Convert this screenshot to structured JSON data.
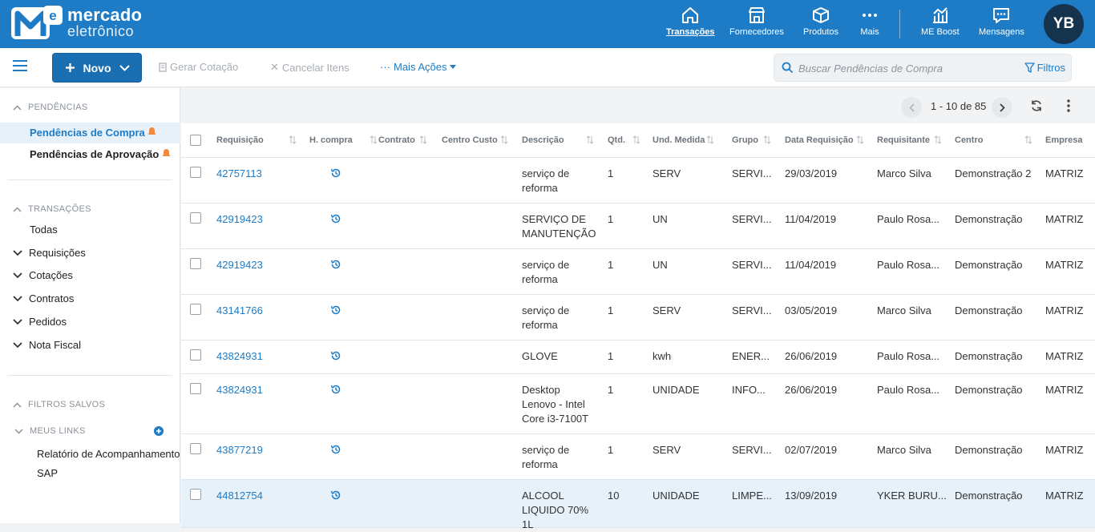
{
  "brand": {
    "line1": "mercado",
    "line2": "eletrônico",
    "mark": "me"
  },
  "nav": [
    {
      "label": "Transações",
      "icon": "home-icon",
      "active": true
    },
    {
      "label": "Fornecedores",
      "icon": "store-icon",
      "active": false
    },
    {
      "label": "Produtos",
      "icon": "box-icon",
      "active": false
    },
    {
      "label": "Mais",
      "icon": "more-dots-icon",
      "active": false
    },
    {
      "label": "ME Boost",
      "icon": "chart-icon",
      "active": false
    },
    {
      "label": "Mensagens",
      "icon": "message-icon",
      "active": false
    }
  ],
  "user": {
    "initials": "YB"
  },
  "toolbar": {
    "novo": "Novo",
    "gerar": "Gerar Cotação",
    "cancelar": "Cancelar Itens",
    "mais_acoes": "Mais Ações",
    "search_placeholder": "Buscar Pendências de Compra",
    "search_value": "",
    "filtros": "Filtros"
  },
  "sidebar": {
    "pendencias_head": "PENDÊNCIAS",
    "pend_compra": "Pendências de Compra",
    "pend_aprov": "Pendências de Aprovação",
    "transacoes_head": "TRANSAÇÕES",
    "todas": "Todas",
    "tree": [
      "Requisições",
      "Cotações",
      "Contratos",
      "Pedidos",
      "Nota Fiscal"
    ],
    "filtros_head": "FILTROS SALVOS",
    "links_head": "MEUS LINKS",
    "link1_a": "Relatório de Acompanhamento",
    "link1_b": "SAP"
  },
  "pager": {
    "range": "1 - 10 de 85"
  },
  "columns": [
    "Requisição",
    "H. compra",
    "Contrato",
    "Centro Custo",
    "Descrição",
    "Qtd.",
    "Und. Medida",
    "Grupo",
    "Data Requisição",
    "Requisitante",
    "Centro",
    "Empresa"
  ],
  "rows": [
    {
      "req": "42757113",
      "desc": "serviço de reforma",
      "qtd": "1",
      "und": "SERV",
      "grupo": "SERVI...",
      "data": "29/03/2019",
      "requisitante": "Marco Silva",
      "centro": "Demonstração 2",
      "empresa": "MATRIZ"
    },
    {
      "req": "42919423",
      "desc": "SERVIÇO DE MANUTENÇÃO",
      "qtd": "1",
      "und": "UN",
      "grupo": "SERVI...",
      "data": "11/04/2019",
      "requisitante": "Paulo Rosa...",
      "centro": "Demonstração",
      "empresa": "MATRIZ"
    },
    {
      "req": "42919423",
      "desc": "serviço de reforma",
      "qtd": "1",
      "und": "UN",
      "grupo": "SERVI...",
      "data": "11/04/2019",
      "requisitante": "Paulo Rosa...",
      "centro": "Demonstração",
      "empresa": "MATRIZ"
    },
    {
      "req": "43141766",
      "desc": "serviço de reforma",
      "qtd": "1",
      "und": "SERV",
      "grupo": "SERVI...",
      "data": "03/05/2019",
      "requisitante": "Marco Silva",
      "centro": "Demonstração",
      "empresa": "MATRIZ"
    },
    {
      "req": "43824931",
      "desc": "GLOVE",
      "qtd": "1",
      "und": "kwh",
      "grupo": "ENER...",
      "data": "26/06/2019",
      "requisitante": "Paulo Rosa...",
      "centro": "Demonstração",
      "empresa": "MATRIZ"
    },
    {
      "req": "43824931",
      "desc": "Desktop Lenovo - Intel Core i3-7100T",
      "qtd": "1",
      "und": "UNIDADE",
      "grupo": "INFO...",
      "data": "26/06/2019",
      "requisitante": "Paulo Rosa...",
      "centro": "Demonstração",
      "empresa": "MATRIZ"
    },
    {
      "req": "43877219",
      "desc": "serviço de reforma",
      "qtd": "1",
      "und": "SERV",
      "grupo": "SERVI...",
      "data": "02/07/2019",
      "requisitante": "Marco Silva",
      "centro": "Demonstração",
      "empresa": "MATRIZ"
    },
    {
      "req": "44812754",
      "desc": "ALCOOL LIQUIDO 70% 1L",
      "qtd": "10",
      "und": "UNIDADE",
      "grupo": "LIMPE...",
      "data": "13/09/2019",
      "requisitante": "YKER BURU...",
      "centro": "Demonstração",
      "empresa": "MATRIZ"
    }
  ],
  "colors": {
    "brand": "#1e7bc5",
    "dark": "#16334d",
    "selected_row": "#e6f1fa",
    "bell": "#f0883e"
  }
}
